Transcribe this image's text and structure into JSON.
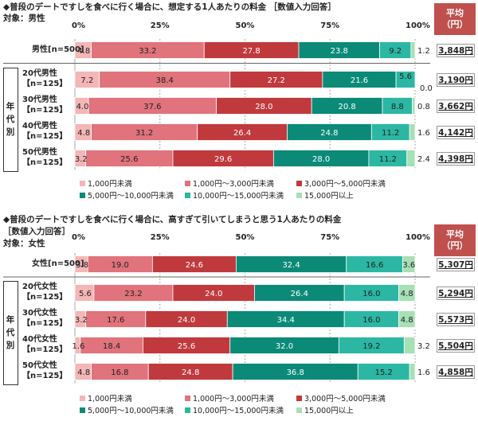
{
  "chart_data": [
    {
      "type": "bar",
      "orientation": "horizontal",
      "stacked": true,
      "title_line1": "◆普段のデートですしを食べに行く場合に、想定する1人あたりの料金 ［数値入力回答］",
      "title_line2": "対象：男性",
      "xlim": [
        0,
        100
      ],
      "x_ticks": [
        "0%",
        "25%",
        "50%",
        "75%",
        "100%"
      ],
      "group_label": "年代別",
      "categories": [
        "男性[n=500]",
        "20代男性\n【n=125】",
        "30代男性\n【n=125】",
        "40代男性\n【n=125】",
        "50代男性\n【n=125】"
      ],
      "series": [
        {
          "name": "1,000円未満",
          "color": "#f4b6b6",
          "values": [
            4.8,
            7.2,
            4.0,
            4.8,
            3.2
          ]
        },
        {
          "name": "1,000円〜3,000円未満",
          "color": "#e0737b",
          "values": [
            33.2,
            38.4,
            37.6,
            31.2,
            25.6
          ]
        },
        {
          "name": "3,000円〜5,000円未満",
          "color": "#c0393d",
          "values": [
            27.8,
            27.2,
            28.0,
            26.4,
            29.6
          ]
        },
        {
          "name": "5,000円〜10,000円未満",
          "color": "#0b8a78",
          "values": [
            23.8,
            21.6,
            20.8,
            24.8,
            28.0
          ]
        },
        {
          "name": "10,000円〜15,000円未満",
          "color": "#2bb7a3",
          "values": [
            9.2,
            5.6,
            8.8,
            11.2,
            11.2
          ]
        },
        {
          "name": "15,000円以上",
          "color": "#a7e0b5",
          "values": [
            1.2,
            0.0,
            0.8,
            1.6,
            2.4
          ]
        }
      ],
      "average_header": "平均\n（円）",
      "averages": [
        "3,848円",
        "3,190円",
        "3,662円",
        "4,142円",
        "4,398円"
      ]
    },
    {
      "type": "bar",
      "orientation": "horizontal",
      "stacked": true,
      "title_line1": "◆普段のデートですしを食べに行く場合に、高すぎて引いてしまうと思う1人あたりの料金",
      "title_line2": "［数値入力回答］",
      "title_line3": "対象：女性",
      "xlim": [
        0,
        100
      ],
      "x_ticks": [
        "0%",
        "25%",
        "50%",
        "75%",
        "100%"
      ],
      "group_label": "年代別",
      "categories": [
        "女性[n=500]",
        "20代女性\n【n=125】",
        "30代女性\n【n=125】",
        "40代女性\n【n=125】",
        "50代女性\n【n=125】"
      ],
      "series": [
        {
          "name": "1,000円未満",
          "color": "#f4b6b6",
          "values": [
            3.8,
            5.6,
            3.2,
            1.6,
            4.8
          ]
        },
        {
          "name": "1,000円〜3,000円未満",
          "color": "#e0737b",
          "values": [
            19.0,
            23.2,
            17.6,
            18.4,
            16.8
          ]
        },
        {
          "name": "3,000円〜5,000円未満",
          "color": "#c0393d",
          "values": [
            24.6,
            24.0,
            24.0,
            25.6,
            24.8
          ]
        },
        {
          "name": "5,000円〜10,000円未満",
          "color": "#0b8a78",
          "values": [
            32.4,
            26.4,
            34.4,
            32.0,
            36.8
          ]
        },
        {
          "name": "10,000円〜15,000円未満",
          "color": "#2bb7a3",
          "values": [
            16.6,
            16.0,
            16.0,
            19.2,
            15.2
          ]
        },
        {
          "name": "15,000円以上",
          "color": "#a7e0b5",
          "values": [
            3.6,
            4.8,
            4.8,
            3.2,
            1.6
          ]
        }
      ],
      "average_header": "平均\n（円）",
      "averages": [
        "5,307円",
        "5,294円",
        "5,573円",
        "5,504円",
        "4,858円"
      ]
    }
  ]
}
